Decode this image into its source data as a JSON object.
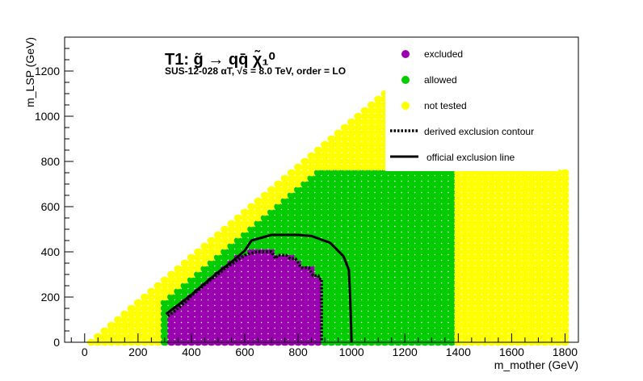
{
  "chart_data": {
    "type": "scatter",
    "title": "T1: g̃ → qq̄ χ̃₁⁰",
    "subtitle": "SUS-12-028   αT, √s =  8.0 TeV, order =  LO",
    "xlabel": "m_mother (GeV)",
    "ylabel": "m_LSP (GeV)",
    "xlim": [
      -75,
      1850
    ],
    "ylim": [
      0,
      1350
    ],
    "x_ticks": [
      0,
      200,
      400,
      600,
      800,
      1000,
      1200,
      1400,
      1600,
      1800
    ],
    "y_ticks": [
      0,
      200,
      400,
      600,
      800,
      1000,
      1200
    ],
    "legend_position": "top-right",
    "grid": false,
    "grid_step": 25,
    "colors": {
      "excluded": "#9a00b0",
      "allowed": "#00cc00",
      "not_tested": "#ffff00",
      "contour": "#000000"
    },
    "legend": [
      {
        "key": "excluded",
        "label": "excluded",
        "kind": "marker",
        "color": "#9a00b0"
      },
      {
        "key": "allowed",
        "label": "allowed",
        "kind": "marker",
        "color": "#00cc00"
      },
      {
        "key": "not_tested",
        "label": "not tested",
        "kind": "marker",
        "color": "#ffff00"
      },
      {
        "key": "derived",
        "label": "derived exclusion contour",
        "kind": "dotted"
      },
      {
        "key": "official",
        "label": "official exclusion line",
        "kind": "solid"
      }
    ],
    "regions": {
      "diagonal_offset": 25,
      "not_tested_band": 125,
      "tested_x_range": [
        300,
        1400
      ],
      "tested_y_max": 750,
      "extra_not_tested_x_range": [
        1400,
        1800
      ],
      "extra_not_tested_y_max": 750
    },
    "excluded_top_by_x": [
      [
        325,
        125
      ],
      [
        350,
        150
      ],
      [
        375,
        175
      ],
      [
        400,
        200
      ],
      [
        425,
        225
      ],
      [
        450,
        250
      ],
      [
        475,
        275
      ],
      [
        500,
        300
      ],
      [
        525,
        325
      ],
      [
        550,
        350
      ],
      [
        575,
        375
      ],
      [
        600,
        375
      ],
      [
        625,
        400
      ],
      [
        650,
        400
      ],
      [
        675,
        400
      ],
      [
        700,
        400
      ],
      [
        725,
        375
      ],
      [
        750,
        375
      ],
      [
        775,
        375
      ],
      [
        800,
        350
      ],
      [
        825,
        325
      ],
      [
        850,
        325
      ],
      [
        875,
        275
      ]
    ],
    "derived_contour": [
      [
        312,
        115
      ],
      [
        330,
        130
      ],
      [
        355,
        155
      ],
      [
        380,
        180
      ],
      [
        400,
        205
      ],
      [
        425,
        230
      ],
      [
        450,
        255
      ],
      [
        475,
        280
      ],
      [
        500,
        300
      ],
      [
        525,
        325
      ],
      [
        550,
        345
      ],
      [
        575,
        365
      ],
      [
        600,
        385
      ],
      [
        625,
        395
      ],
      [
        650,
        400
      ],
      [
        700,
        400
      ],
      [
        715,
        370
      ],
      [
        725,
        385
      ],
      [
        755,
        385
      ],
      [
        770,
        370
      ],
      [
        790,
        370
      ],
      [
        810,
        330
      ],
      [
        840,
        330
      ],
      [
        855,
        295
      ],
      [
        875,
        295
      ],
      [
        878,
        280
      ],
      [
        888,
        280
      ],
      [
        888,
        0
      ]
    ],
    "official_line": [
      [
        305,
        125
      ],
      [
        350,
        165
      ],
      [
        400,
        210
      ],
      [
        450,
        260
      ],
      [
        500,
        310
      ],
      [
        550,
        355
      ],
      [
        600,
        405
      ],
      [
        625,
        450
      ],
      [
        700,
        475
      ],
      [
        800,
        475
      ],
      [
        850,
        470
      ],
      [
        920,
        440
      ],
      [
        970,
        380
      ],
      [
        990,
        320
      ],
      [
        995,
        200
      ],
      [
        1000,
        0
      ]
    ]
  }
}
